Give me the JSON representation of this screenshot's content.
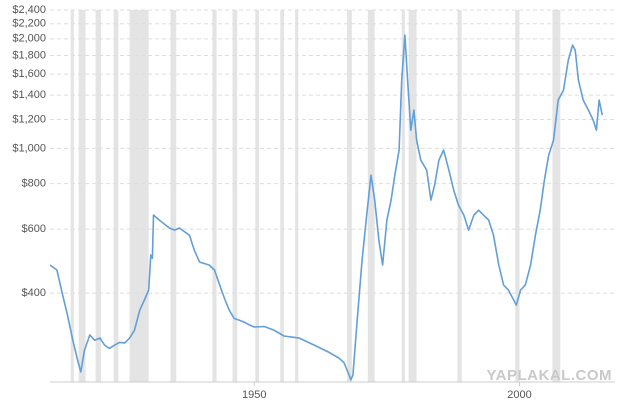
{
  "chart_data": {
    "type": "line",
    "log_y": true,
    "grid": true,
    "xlim": [
      1911.5,
      2018
    ],
    "ylim": [
      228,
      2400
    ],
    "xticks": [
      1950,
      2000
    ],
    "yticks": [
      {
        "value": 400,
        "label": "$400"
      },
      {
        "value": 600,
        "label": "$600"
      },
      {
        "value": 800,
        "label": "$800"
      },
      {
        "value": 1000,
        "label": "$1,000"
      },
      {
        "value": 1200,
        "label": "$1,200"
      },
      {
        "value": 1400,
        "label": "$1,400"
      },
      {
        "value": 1600,
        "label": "$1,600"
      },
      {
        "value": 1800,
        "label": "$1,800"
      },
      {
        "value": 2000,
        "label": "$2,000"
      },
      {
        "value": 2200,
        "label": "$2,200"
      },
      {
        "value": 2400,
        "label": "$2,400"
      }
    ],
    "recession_color": "#e4e4e4",
    "recessions": [
      [
        1915.4,
        1916.0
      ],
      [
        1916.9,
        1918.2
      ],
      [
        1920.1,
        1921.1
      ],
      [
        1923.5,
        1924.4
      ],
      [
        1926.5,
        1930.1
      ],
      [
        1934.2,
        1935.3
      ],
      [
        1942.1,
        1942.9
      ],
      [
        1945.9,
        1946.8
      ],
      [
        1950.2,
        1950.9
      ],
      [
        1954.9,
        1955.6
      ],
      [
        1957.7,
        1958.3
      ],
      [
        1967.5,
        1968.4
      ],
      [
        1971.4,
        1972.7
      ],
      [
        1977.8,
        1978.4
      ],
      [
        1979.1,
        1980.6
      ],
      [
        1988.3,
        1989.1
      ],
      [
        1999.2,
        2000.0
      ],
      [
        2006.2,
        2007.7
      ]
    ],
    "series": [
      {
        "color": "#629fd6",
        "x": [
          1911.5,
          1912.8,
          1913.9,
          1914.8,
          1915.8,
          1916.7,
          1917.3,
          1918.0,
          1919.0,
          1919.9,
          1920.9,
          1921.8,
          1922.7,
          1923.7,
          1924.6,
          1925.6,
          1926.5,
          1927.4,
          1928.4,
          1929.3,
          1930.1,
          1930.5,
          1930.8,
          1931.0,
          1932.1,
          1934.0,
          1935.0,
          1935.9,
          1937.8,
          1938.7,
          1939.7,
          1941.5,
          1942.5,
          1943.8,
          1944.5,
          1945.3,
          1946.2,
          1947.2,
          1948.1,
          1949.1,
          1950.0,
          1951.9,
          1953.8,
          1955.6,
          1958.5,
          1961.3,
          1964.1,
          1966.0,
          1966.9,
          1967.9,
          1968.2,
          1968.6,
          1969.4,
          1970.3,
          1971.2,
          1972.0,
          1972.7,
          1973.5,
          1974.2,
          1975.0,
          1975.8,
          1976.5,
          1977.3,
          1977.8,
          1978.4,
          1978.9,
          1979.5,
          1980.1,
          1980.6,
          1981.4,
          1982.5,
          1983.3,
          1984.0,
          1984.8,
          1985.7,
          1986.7,
          1987.6,
          1988.5,
          1989.5,
          1990.4,
          1991.4,
          1992.3,
          1993.2,
          1994.2,
          1995.1,
          1996.1,
          1997.0,
          1997.9,
          1998.9,
          1999.4,
          2000.2,
          2001.1,
          2002.1,
          2003.0,
          2003.9,
          2004.7,
          2005.5,
          2006.4,
          2007.3,
          2008.3,
          2009.2,
          2010.0,
          2010.5,
          2011.1,
          2012.0,
          2013.0,
          2013.9,
          2014.5,
          2015.0,
          2015.6
        ],
        "values": [
          478,
          463,
          395,
          348,
          297,
          262,
          243,
          279,
          307,
          297,
          301,
          288,
          282,
          288,
          293,
          292,
          301,
          316,
          359,
          383,
          408,
          509,
          499,
          656,
          635,
          604,
          596,
          604,
          577,
          525,
          487,
          478,
          463,
          408,
          383,
          359,
          341,
          337,
          333,
          327,
          323,
          324,
          316,
          305,
          301,
          288,
          275,
          265,
          258,
          238,
          231,
          238,
          337,
          487,
          656,
          844,
          721,
          559,
          478,
          635,
          721,
          844,
          989,
          1540,
          2048,
          1540,
          1122,
          1273,
          1053,
          928,
          871,
          721,
          792,
          928,
          989,
          871,
          768,
          698,
          656,
          596,
          656,
          676,
          656,
          635,
          577,
          478,
          421,
          408,
          383,
          371,
          408,
          421,
          478,
          577,
          676,
          818,
          958,
          1053,
          1357,
          1446,
          1748,
          1922,
          1862,
          1540,
          1357,
          1273,
          1195,
          1122,
          1357,
          1234
        ]
      }
    ],
    "watermark": "YAPLAKAL.COM"
  }
}
